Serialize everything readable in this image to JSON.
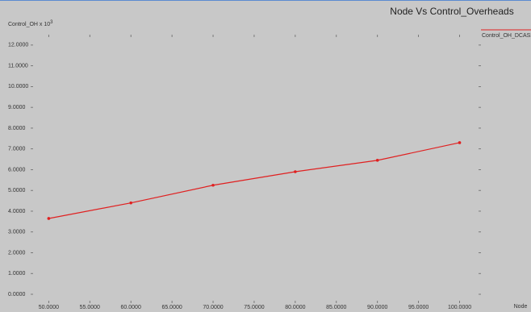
{
  "chart_data": {
    "type": "line",
    "title": "Node Vs Control_Overheads",
    "y_label": "Control_OH x 10",
    "y_label_exponent": "3",
    "x_label": "Node",
    "x": [
      50,
      60,
      70,
      80,
      90,
      100
    ],
    "series": [
      {
        "name": "Control_OH_DCASS",
        "color": "#e02020",
        "values": [
          3.65,
          4.4,
          5.25,
          5.9,
          6.45,
          7.3
        ]
      }
    ],
    "xlim": [
      48,
      102.5
    ],
    "ylim": [
      0,
      12.5
    ],
    "xticks": [
      {
        "value": 50,
        "label": "50.0000"
      },
      {
        "value": 55,
        "label": "55.0000"
      },
      {
        "value": 60,
        "label": "60.0000"
      },
      {
        "value": 65,
        "label": "65.0000"
      },
      {
        "value": 70,
        "label": "70.0000"
      },
      {
        "value": 75,
        "label": "75.0000"
      },
      {
        "value": 80,
        "label": "80.0000"
      },
      {
        "value": 85,
        "label": "85.0000"
      },
      {
        "value": 90,
        "label": "90.0000"
      },
      {
        "value": 95,
        "label": "95.0000"
      },
      {
        "value": 100,
        "label": "100.0000"
      }
    ],
    "yticks": [
      {
        "value": 0,
        "label": "0.0000"
      },
      {
        "value": 1,
        "label": "1.0000"
      },
      {
        "value": 2,
        "label": "2.0000"
      },
      {
        "value": 3,
        "label": "3.0000"
      },
      {
        "value": 4,
        "label": "4.0000"
      },
      {
        "value": 5,
        "label": "5.0000"
      },
      {
        "value": 6,
        "label": "6.0000"
      },
      {
        "value": 7,
        "label": "7.0000"
      },
      {
        "value": 8,
        "label": "8.0000"
      },
      {
        "value": 9,
        "label": "9.0000"
      },
      {
        "value": 10,
        "label": "10.0000"
      },
      {
        "value": 11,
        "label": "11.0000"
      },
      {
        "value": 12,
        "label": "12.0000"
      }
    ],
    "grid": false
  }
}
